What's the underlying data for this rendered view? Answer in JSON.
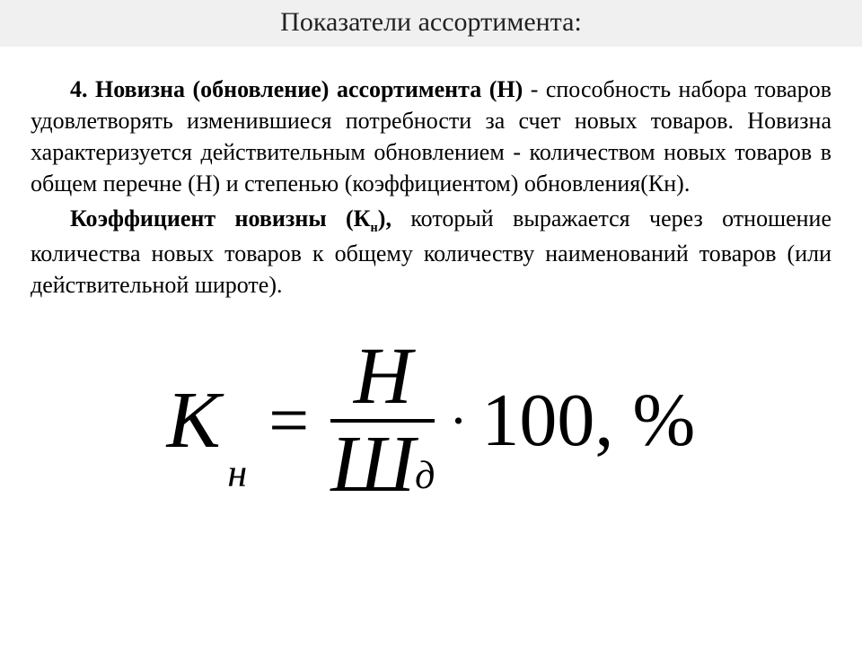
{
  "title": "Показатели ассортимента:",
  "para1": {
    "lead": "4. Новизна (обновление) ассортимента (Н)",
    "rest": " - способность набора товаров удовлетворять изменившиеся потребности за счет новых товаров. Новизна характеризуется действительным обновлением - количеством новых товаров в общем перечне (Н) и степенью (коэффициентом) обновления(Кн)."
  },
  "para2": {
    "lead": "Коэффициент новизны (К",
    "sub": "н",
    "lead2": "),",
    "rest": " который выражается через отношение количества новых товаров к общему количеству наименований товаров (или действительной широте)."
  },
  "formula": {
    "K": "К",
    "K_sub": "н",
    "eq": "=",
    "num": "Н",
    "den": "Ш",
    "den_sub": "д",
    "dot": "·",
    "tail": "100, %"
  },
  "colors": {
    "title_bg": "#f0f0f0",
    "text": "#000000",
    "background": "#ffffff"
  }
}
